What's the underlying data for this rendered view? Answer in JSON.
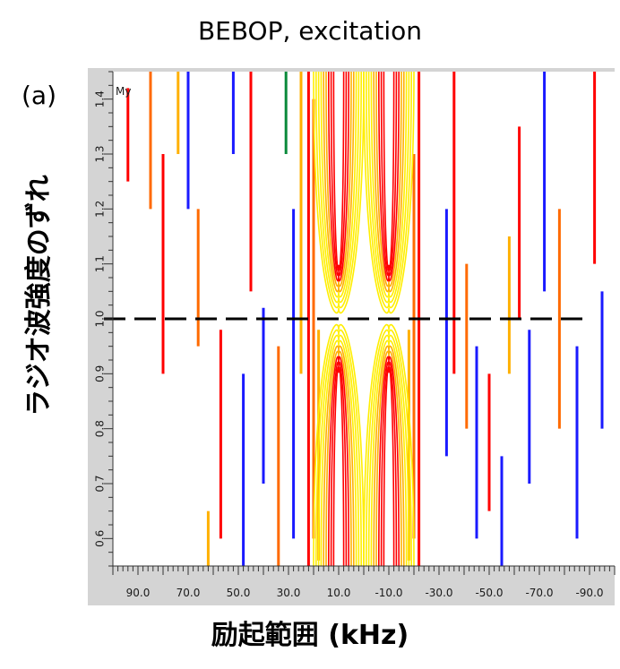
{
  "chart_data": {
    "type": "heatmap",
    "title": "BEBOP, excitation",
    "panel_label": "(a)",
    "inset_label": "My",
    "xlabel": "励起範囲 (kHz)",
    "ylabel": "ラジオ波強度のずれ",
    "x_ticks": [
      "90.0",
      "70.0",
      "50.0",
      "30.0",
      "10.0",
      "-10.0",
      "-30.0",
      "-50.0",
      "-70.0",
      "-90.0"
    ],
    "x_tick_values": [
      90,
      70,
      50,
      30,
      10,
      -10,
      -30,
      -50,
      -70,
      -90
    ],
    "xlim": [
      100,
      -100
    ],
    "y_ticks": [
      "0.6",
      "0.7",
      "0.8",
      "0.9",
      "1.0",
      "1.1",
      "1.2",
      "1.3",
      "1.4"
    ],
    "y_tick_values": [
      0.6,
      0.7,
      0.8,
      0.9,
      1.0,
      1.1,
      1.2,
      1.3,
      1.4
    ],
    "ylim": [
      0.55,
      1.45
    ],
    "reference_line": {
      "y": 1.0,
      "style": "dashed"
    },
    "contour_colors": [
      "#ff0000",
      "#ff6a00",
      "#ffb000",
      "#ffee00",
      "#1a1aff",
      "#0a8a3a"
    ],
    "contour_segments": [
      {
        "x": 22,
        "y0": 0.55,
        "y1": 1.45,
        "c": 0
      },
      {
        "x": 20,
        "y0": 0.6,
        "y1": 1.4,
        "c": 1
      },
      {
        "x": 18,
        "y0": 0.56,
        "y1": 0.98,
        "c": 2
      },
      {
        "x": -22,
        "y0": 0.55,
        "y1": 1.45,
        "c": 0
      },
      {
        "x": -20,
        "y0": 0.6,
        "y1": 1.3,
        "c": 1
      },
      {
        "x": -18,
        "y0": 0.56,
        "y1": 0.98,
        "c": 2
      },
      {
        "x": 62,
        "y0": 0.55,
        "y1": 0.65,
        "c": 2
      },
      {
        "x": 57,
        "y0": 0.6,
        "y1": 0.98,
        "c": 0
      },
      {
        "x": 48,
        "y0": 0.55,
        "y1": 0.9,
        "c": 4
      },
      {
        "x": 45,
        "y0": 1.05,
        "y1": 1.45,
        "c": 0
      },
      {
        "x": 40,
        "y0": 0.7,
        "y1": 1.02,
        "c": 4
      },
      {
        "x": 34,
        "y0": 0.55,
        "y1": 0.95,
        "c": 1
      },
      {
        "x": 31,
        "y0": 1.3,
        "y1": 1.45,
        "c": 5
      },
      {
        "x": 28,
        "y0": 0.6,
        "y1": 1.2,
        "c": 4
      },
      {
        "x": 25,
        "y0": 0.9,
        "y1": 1.45,
        "c": 2
      },
      {
        "x": 80,
        "y0": 0.9,
        "y1": 1.3,
        "c": 0
      },
      {
        "x": 85,
        "y0": 1.2,
        "y1": 1.45,
        "c": 1
      },
      {
        "x": 94,
        "y0": 1.25,
        "y1": 1.42,
        "c": 0
      },
      {
        "x": 70,
        "y0": 1.2,
        "y1": 1.45,
        "c": 4
      },
      {
        "x": 66,
        "y0": 0.95,
        "y1": 1.2,
        "c": 1
      },
      {
        "x": 74,
        "y0": 1.3,
        "y1": 1.45,
        "c": 2
      },
      {
        "x": 52,
        "y0": 1.3,
        "y1": 1.45,
        "c": 4
      },
      {
        "x": -33,
        "y0": 0.75,
        "y1": 1.2,
        "c": 4
      },
      {
        "x": -36,
        "y0": 0.9,
        "y1": 1.45,
        "c": 0
      },
      {
        "x": -41,
        "y0": 0.8,
        "y1": 1.1,
        "c": 1
      },
      {
        "x": -45,
        "y0": 0.6,
        "y1": 0.95,
        "c": 4
      },
      {
        "x": -50,
        "y0": 0.65,
        "y1": 0.9,
        "c": 0
      },
      {
        "x": -55,
        "y0": 0.55,
        "y1": 0.75,
        "c": 4
      },
      {
        "x": -58,
        "y0": 0.9,
        "y1": 1.15,
        "c": 2
      },
      {
        "x": -62,
        "y0": 1.0,
        "y1": 1.35,
        "c": 0
      },
      {
        "x": -66,
        "y0": 0.7,
        "y1": 0.98,
        "c": 4
      },
      {
        "x": -72,
        "y0": 1.05,
        "y1": 1.45,
        "c": 4
      },
      {
        "x": -78,
        "y0": 0.8,
        "y1": 1.2,
        "c": 1
      },
      {
        "x": -85,
        "y0": 0.6,
        "y1": 0.95,
        "c": 4
      },
      {
        "x": -92,
        "y0": 1.1,
        "y1": 1.45,
        "c": 0
      },
      {
        "x": -95,
        "y0": 0.8,
        "y1": 1.05,
        "c": 4
      }
    ],
    "contour_lobes": [
      {
        "x0": 20,
        "x1": 0,
        "y0": 1.02,
        "y1": 1.45,
        "peak_y": 1.45
      },
      {
        "x0": 0,
        "x1": -20,
        "y0": 1.02,
        "y1": 1.45,
        "peak_y": 1.45
      },
      {
        "x0": 20,
        "x1": 0,
        "y0": 0.55,
        "y1": 0.98,
        "peak_y": 0.55
      },
      {
        "x0": 0,
        "x1": -20,
        "y0": 0.55,
        "y1": 0.98,
        "peak_y": 0.55
      }
    ]
  }
}
